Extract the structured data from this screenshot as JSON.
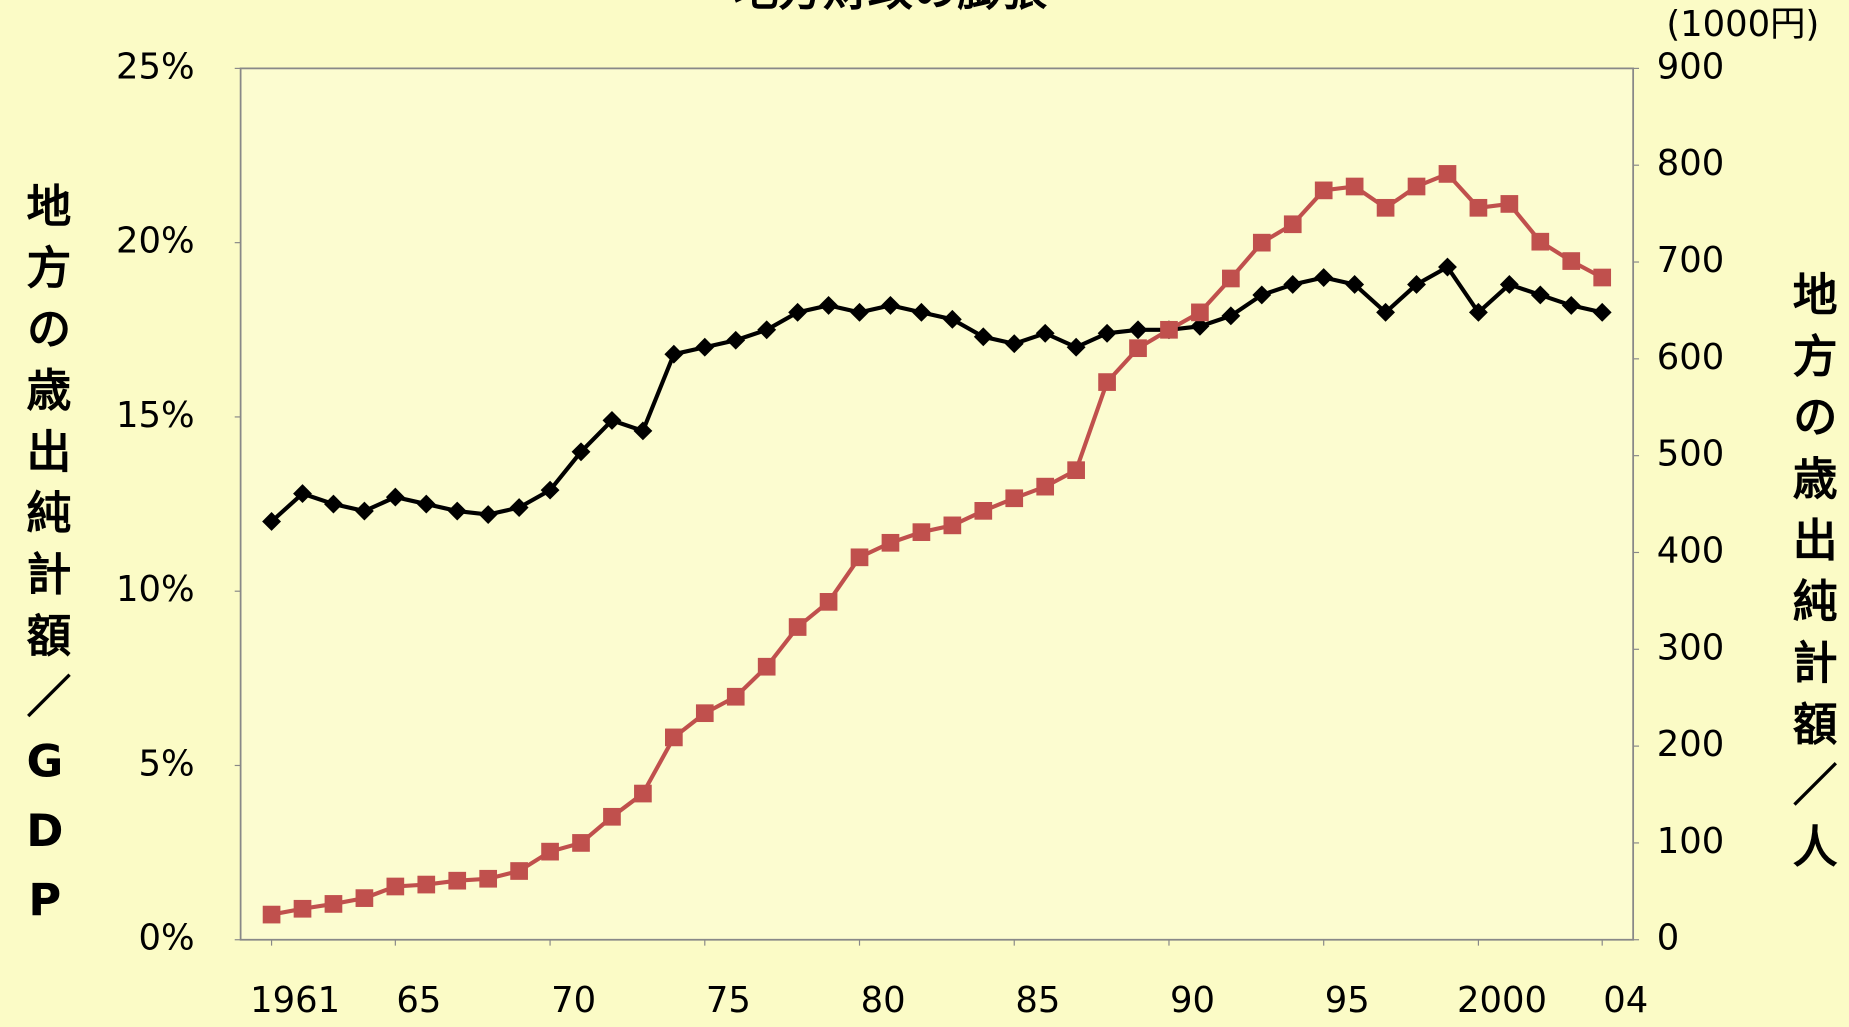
{
  "chart_data": {
    "type": "line",
    "title": "地方財政の膨張",
    "ylabel": "地方の歳出純計額／GDP",
    "y2label": "地方の歳出純計額／人",
    "y2unit": "(1000円)",
    "x": [
      1961,
      1962,
      1963,
      1964,
      1965,
      1966,
      1967,
      1968,
      1969,
      1970,
      1971,
      1972,
      1973,
      1974,
      1975,
      1976,
      1977,
      1978,
      1979,
      1980,
      1981,
      1982,
      1983,
      1984,
      1985,
      1986,
      1987,
      1988,
      1989,
      1990,
      1991,
      1992,
      1993,
      1994,
      1995,
      1996,
      1997,
      1998,
      1999,
      2000,
      2001,
      2002,
      2003,
      2004
    ],
    "xlim": [
      1960,
      2005
    ],
    "xticks": [
      1961,
      {
        "value": 1965,
        "label": "65"
      },
      {
        "value": 1970,
        "label": "70"
      },
      {
        "value": 1975,
        "label": "75"
      },
      {
        "value": 1980,
        "label": "80"
      },
      {
        "value": 1985,
        "label": "85"
      },
      {
        "value": 1990,
        "label": "90"
      },
      {
        "value": 1995,
        "label": "95"
      },
      2000,
      {
        "value": 2004,
        "label": "04"
      }
    ],
    "ylim": [
      0,
      25
    ],
    "yticks": [
      {
        "value": 0,
        "label": "0%"
      },
      {
        "value": 5,
        "label": "5%"
      },
      {
        "value": 10,
        "label": "10%"
      },
      {
        "value": 15,
        "label": "15%"
      },
      {
        "value": 20,
        "label": "20%"
      },
      {
        "value": 25,
        "label": "25%"
      }
    ],
    "y2lim": [
      0,
      900
    ],
    "y2ticks": [
      0,
      100,
      200,
      300,
      400,
      500,
      600,
      700,
      800,
      900
    ],
    "series": [
      {
        "color": "#000000",
        "marker": "diamond",
        "values": [
          12.0,
          12.8,
          12.5,
          12.3,
          12.7,
          12.5,
          12.3,
          12.2,
          12.4,
          12.9,
          14.0,
          14.9,
          14.6,
          16.8,
          17.0,
          17.2,
          17.5,
          18.0,
          18.2,
          18.0,
          18.2,
          18.0,
          17.8,
          17.3,
          17.1,
          17.4,
          17.0,
          17.4,
          17.5,
          17.5,
          17.6,
          17.9,
          18.5,
          18.8,
          19.0,
          18.8,
          18.0,
          18.8,
          19.3,
          18.0,
          18.8,
          18.5,
          18.2,
          18.0
        ]
      },
      {
        "color": "#c0504d",
        "marker": "square",
        "axis": "y2",
        "values": [
          26,
          32,
          37,
          43,
          55,
          57,
          61,
          63,
          71,
          91,
          100,
          127,
          151,
          209,
          234,
          251,
          282,
          323,
          349,
          395,
          410,
          421,
          428,
          443,
          456,
          468,
          485,
          576,
          611,
          630,
          648,
          683,
          720,
          739,
          774,
          778,
          756,
          778,
          791,
          756,
          760,
          721,
          701,
          684
        ]
      }
    ]
  }
}
